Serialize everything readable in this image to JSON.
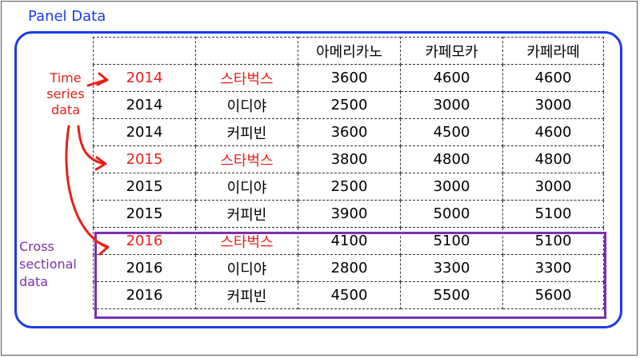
{
  "title": "Panel Data",
  "time_series_label": [
    "Time",
    "series",
    "data"
  ],
  "cross_sectional_label": [
    "Cross",
    "sectional",
    "data"
  ],
  "table": {
    "headers": [
      "",
      "",
      "아메리카노",
      "카페모카",
      "카페라떼"
    ],
    "rows": [
      {
        "year": "2014",
        "brand": "스타벅스",
        "americano": "3600",
        "mocha": "4600",
        "latte": "4600",
        "highlight": true
      },
      {
        "year": "2014",
        "brand": "이디야",
        "americano": "2500",
        "mocha": "3000",
        "latte": "3000",
        "highlight": false
      },
      {
        "year": "2014",
        "brand": "커피빈",
        "americano": "3600",
        "mocha": "4500",
        "latte": "4600",
        "highlight": false
      },
      {
        "year": "2015",
        "brand": "스타벅스",
        "americano": "3800",
        "mocha": "4800",
        "latte": "4800",
        "highlight": true
      },
      {
        "year": "2015",
        "brand": "이디야",
        "americano": "2500",
        "mocha": "3000",
        "latte": "3000",
        "highlight": false
      },
      {
        "year": "2015",
        "brand": "커피빈",
        "americano": "3900",
        "mocha": "5000",
        "latte": "5100",
        "highlight": false
      },
      {
        "year": "2016",
        "brand": "스타벅스",
        "americano": "4100",
        "mocha": "5100",
        "latte": "5100",
        "highlight": true
      },
      {
        "year": "2016",
        "brand": "이디야",
        "americano": "2800",
        "mocha": "3300",
        "latte": "3300",
        "highlight": false
      },
      {
        "year": "2016",
        "brand": "커피빈",
        "americano": "4500",
        "mocha": "5500",
        "latte": "5600",
        "highlight": false
      }
    ]
  },
  "colors": {
    "panel": "#1a3be8",
    "time_series": "#e8201a",
    "cross_sectional": "#7d2fb0"
  }
}
